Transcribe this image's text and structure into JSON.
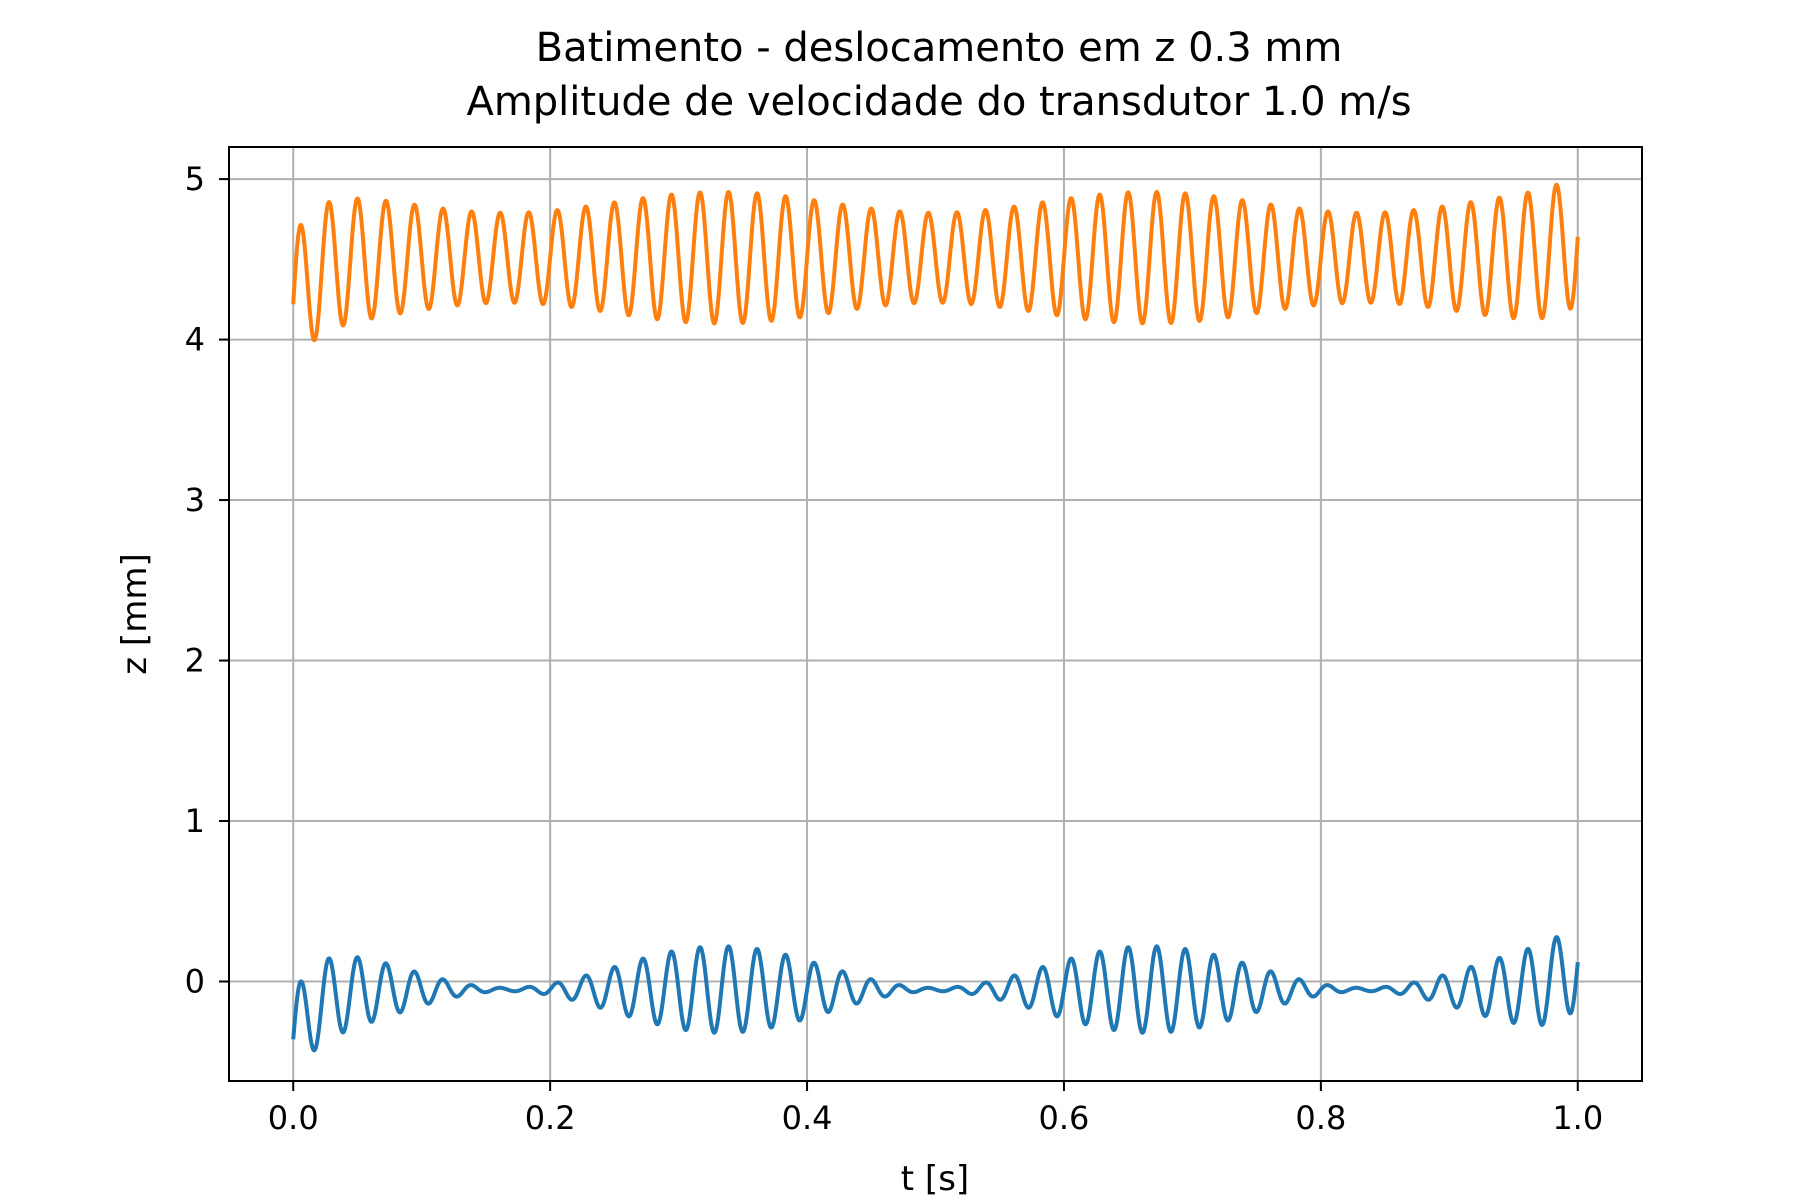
{
  "chart_data": {
    "type": "line",
    "title": "Batimento - deslocamento em z 0.3 mm\nAmplitude de velocidade do transdutor 1.0 m/s",
    "title_lines": [
      "Batimento - deslocamento em z 0.3 mm",
      "Amplitude de velocidade do transdutor 1.0 m/s"
    ],
    "xlabel": "t [s]",
    "ylabel": "z [mm]",
    "xlim": [
      -0.05,
      1.05
    ],
    "ylim": [
      -0.62,
      5.2
    ],
    "grid": true,
    "x_ticks": [
      0.0,
      0.2,
      0.4,
      0.6,
      0.8,
      1.0
    ],
    "x_tick_labels": [
      "0.0",
      "0.2",
      "0.4",
      "0.6",
      "0.8",
      "1.0"
    ],
    "y_ticks": [
      0,
      1,
      2,
      3,
      4,
      5
    ],
    "y_tick_labels": [
      "0",
      "1",
      "2",
      "3",
      "4",
      "5"
    ],
    "series": [
      {
        "color": "#1f77b4",
        "model": {
          "t_start": 0.0,
          "t_end": 1.0,
          "offset": -0.05,
          "carrier_freq_hz": 45,
          "beat_freq_hz": 3,
          "amp_mean": 0.14,
          "amp_variation": 0.13,
          "start_value": -0.36,
          "end_value": 0.12
        }
      },
      {
        "color": "#ff7f0e",
        "model": {
          "t_start": 0.0,
          "t_end": 1.0,
          "offset": 4.51,
          "carrier_freq_hz": 45,
          "beat_freq_hz": 3,
          "amp_mean": 0.345,
          "amp_variation": 0.065,
          "start_value": 4.22,
          "end_value": 4.64
        }
      }
    ]
  }
}
